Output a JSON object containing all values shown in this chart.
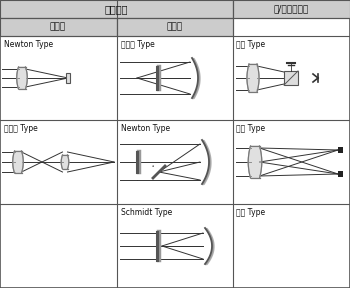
{
  "title_top": "鏡片單元",
  "col1_header": "折射系",
  "col2_header": "反射系",
  "col3_header": "送/收信單方法",
  "cell_labels": {
    "r1c1": "Newton Type",
    "r1c2": "偽倒略 Type",
    "r1c3": "單眼 Type",
    "r2c1": "克涌勒 Type",
    "r2c2": "Newton Type",
    "r2c3": "雙眼 Type",
    "r3c1": "",
    "r3c2": "Schmidt Type",
    "r3c3": "三眼 Type"
  },
  "bg_color": "#e8e8e8",
  "cell_bg": "#f0f0f0",
  "border_color": "#555555",
  "line_color": "#333333",
  "lens_color": "#888888",
  "text_color": "#111111",
  "header_bg": "#cccccc",
  "fig_width": 3.5,
  "fig_height": 2.88,
  "dpi": 100
}
